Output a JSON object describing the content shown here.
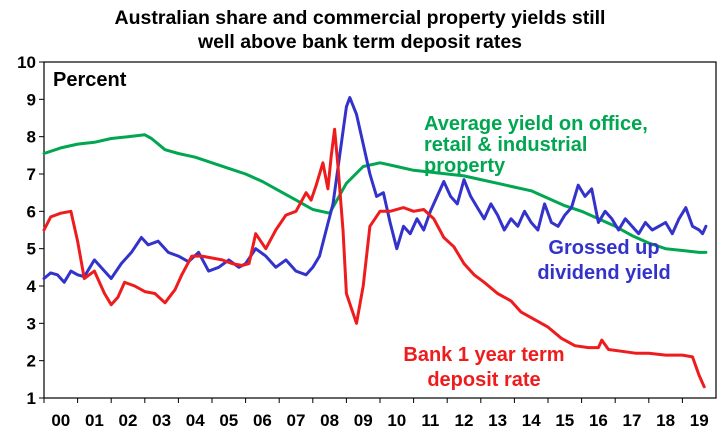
{
  "chart_data": {
    "type": "line",
    "title_line1": "Australian share and commercial property yields still",
    "title_line2": "well above bank term deposit rates",
    "unit_label": "Percent",
    "ylim": [
      1,
      10
    ],
    "xlim": [
      2000,
      2020
    ],
    "y_ticks": [
      "1",
      "2",
      "3",
      "4",
      "5",
      "6",
      "7",
      "8",
      "9",
      "10"
    ],
    "x_ticks": [
      "00",
      "01",
      "02",
      "03",
      "04",
      "05",
      "06",
      "07",
      "08",
      "09",
      "10",
      "11",
      "12",
      "13",
      "14",
      "15",
      "16",
      "17",
      "18",
      "19"
    ],
    "grid": false,
    "series": [
      {
        "name": "Average yield on office, retail & industrial property",
        "label_lines": [
          "Average yield on office,",
          "retail & industrial",
          "property"
        ],
        "color": "#00A650",
        "x": [
          2000.0,
          2000.5,
          2001.0,
          2001.5,
          2002.0,
          2002.5,
          2003.0,
          2003.2,
          2003.6,
          2004.0,
          2004.5,
          2005.0,
          2005.5,
          2006.0,
          2006.5,
          2007.0,
          2007.5,
          2008.0,
          2008.5,
          2009.0,
          2009.5,
          2010.0,
          2010.5,
          2011.0,
          2011.5,
          2012.0,
          2012.5,
          2013.0,
          2013.5,
          2014.0,
          2014.5,
          2015.0,
          2015.5,
          2016.0,
          2016.5,
          2017.0,
          2017.5,
          2018.0,
          2018.5,
          2019.0,
          2019.5,
          2019.7
        ],
        "y": [
          7.55,
          7.7,
          7.8,
          7.85,
          7.95,
          8.0,
          8.05,
          7.95,
          7.65,
          7.55,
          7.45,
          7.3,
          7.15,
          7.0,
          6.8,
          6.55,
          6.3,
          6.05,
          5.95,
          6.75,
          7.2,
          7.3,
          7.2,
          7.1,
          7.05,
          7.0,
          6.95,
          6.85,
          6.75,
          6.65,
          6.55,
          6.35,
          6.15,
          6.0,
          5.8,
          5.6,
          5.35,
          5.15,
          5.0,
          4.95,
          4.9,
          4.9
        ]
      },
      {
        "name": "Grossed up dividend yield",
        "label_lines": [
          "Grossed up",
          "dividend yield"
        ],
        "color": "#3333CC",
        "x": [
          2000.0,
          2000.2,
          2000.4,
          2000.6,
          2000.8,
          2001.0,
          2001.2,
          2001.5,
          2001.8,
          2002.0,
          2002.3,
          2002.6,
          2002.9,
          2003.1,
          2003.4,
          2003.7,
          2004.0,
          2004.3,
          2004.6,
          2004.9,
          2005.2,
          2005.5,
          2005.8,
          2006.0,
          2006.3,
          2006.6,
          2006.9,
          2007.2,
          2007.5,
          2007.8,
          2008.0,
          2008.2,
          2008.4,
          2008.6,
          2008.8,
          2009.0,
          2009.1,
          2009.3,
          2009.5,
          2009.7,
          2009.9,
          2010.1,
          2010.3,
          2010.5,
          2010.7,
          2010.9,
          2011.1,
          2011.3,
          2011.5,
          2011.7,
          2011.9,
          2012.1,
          2012.3,
          2012.5,
          2012.7,
          2012.9,
          2013.1,
          2013.3,
          2013.5,
          2013.7,
          2013.9,
          2014.1,
          2014.3,
          2014.5,
          2014.7,
          2014.9,
          2015.1,
          2015.3,
          2015.5,
          2015.7,
          2015.9,
          2016.1,
          2016.3,
          2016.5,
          2016.7,
          2016.9,
          2017.1,
          2017.3,
          2017.5,
          2017.7,
          2017.9,
          2018.1,
          2018.3,
          2018.5,
          2018.7,
          2018.9,
          2019.1,
          2019.3,
          2019.5,
          2019.6,
          2019.7
        ],
        "y": [
          4.2,
          4.35,
          4.3,
          4.1,
          4.4,
          4.3,
          4.25,
          4.7,
          4.4,
          4.2,
          4.6,
          4.9,
          5.3,
          5.1,
          5.2,
          4.9,
          4.8,
          4.65,
          4.9,
          4.4,
          4.5,
          4.7,
          4.5,
          4.6,
          5.0,
          4.8,
          4.5,
          4.7,
          4.4,
          4.3,
          4.5,
          4.8,
          5.5,
          6.2,
          7.5,
          8.8,
          9.05,
          8.6,
          7.8,
          7.0,
          6.4,
          6.5,
          5.7,
          5.0,
          5.6,
          5.4,
          5.8,
          5.5,
          6.0,
          6.4,
          6.8,
          6.4,
          6.2,
          6.85,
          6.4,
          6.1,
          5.8,
          6.2,
          5.9,
          5.5,
          5.8,
          5.6,
          6.0,
          5.7,
          5.5,
          6.2,
          5.7,
          5.6,
          5.9,
          6.1,
          6.7,
          6.4,
          6.6,
          5.7,
          6.0,
          5.8,
          5.5,
          5.8,
          5.6,
          5.4,
          5.7,
          5.5,
          5.6,
          5.7,
          5.4,
          5.8,
          6.1,
          5.6,
          5.5,
          5.4,
          5.6
        ]
      },
      {
        "name": "Bank 1 year term deposit rate",
        "label_lines": [
          "Bank 1 year term",
          "deposit rate"
        ],
        "color": "#EE1C1C",
        "x": [
          2000.0,
          2000.2,
          2000.5,
          2000.8,
          2001.0,
          2001.2,
          2001.5,
          2001.8,
          2002.0,
          2002.2,
          2002.4,
          2002.7,
          2003.0,
          2003.3,
          2003.6,
          2003.9,
          2004.1,
          2004.4,
          2004.7,
          2005.0,
          2005.3,
          2005.6,
          2005.9,
          2006.1,
          2006.3,
          2006.6,
          2006.9,
          2007.2,
          2007.5,
          2007.8,
          2007.95,
          2008.1,
          2008.3,
          2008.45,
          2008.55,
          2008.65,
          2008.75,
          2008.9,
          2009.0,
          2009.15,
          2009.3,
          2009.5,
          2009.7,
          2010.0,
          2010.3,
          2010.7,
          2011.0,
          2011.3,
          2011.6,
          2011.9,
          2012.2,
          2012.5,
          2012.8,
          2013.1,
          2013.5,
          2013.9,
          2014.2,
          2014.6,
          2015.0,
          2015.4,
          2015.8,
          2016.2,
          2016.5,
          2016.6,
          2016.8,
          2017.2,
          2017.6,
          2018.0,
          2018.5,
          2019.0,
          2019.3,
          2019.5,
          2019.65
        ],
        "y": [
          5.5,
          5.85,
          5.95,
          6.0,
          5.2,
          4.2,
          4.4,
          3.8,
          3.5,
          3.7,
          4.1,
          4.0,
          3.85,
          3.8,
          3.55,
          3.9,
          4.3,
          4.8,
          4.8,
          4.75,
          4.7,
          4.6,
          4.55,
          4.6,
          5.4,
          5.0,
          5.5,
          5.9,
          6.0,
          6.5,
          6.3,
          6.7,
          7.3,
          6.6,
          7.5,
          8.2,
          7.2,
          5.5,
          3.8,
          3.4,
          3.0,
          4.0,
          5.6,
          6.0,
          6.0,
          6.1,
          6.0,
          6.05,
          5.8,
          5.3,
          5.05,
          4.6,
          4.3,
          4.1,
          3.8,
          3.6,
          3.3,
          3.1,
          2.9,
          2.6,
          2.4,
          2.35,
          2.35,
          2.55,
          2.3,
          2.25,
          2.2,
          2.2,
          2.15,
          2.15,
          2.1,
          1.6,
          1.3
        ]
      }
    ]
  }
}
